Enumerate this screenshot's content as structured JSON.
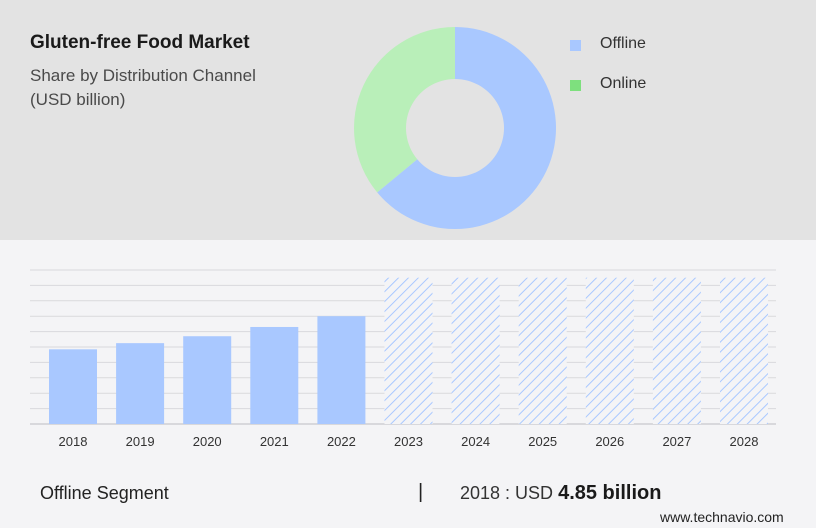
{
  "header": {
    "title": "Gluten-free Food Market",
    "subtitle": "Share by Distribution Channel",
    "unit": "(USD billion)"
  },
  "legend": [
    {
      "label": "Offline",
      "color": "#a9c8ff"
    },
    {
      "label": "Online",
      "color": "#7ee07e"
    }
  ],
  "chart_data": [
    {
      "type": "pie",
      "style": "donut",
      "slices": [
        {
          "label": "Offline",
          "value": 64,
          "color": "#a9c8ff"
        },
        {
          "label": "Online",
          "value": 36,
          "color": "#b9efb9"
        }
      ]
    },
    {
      "type": "bar",
      "categories": [
        "2018",
        "2019",
        "2020",
        "2021",
        "2022",
        "2023",
        "2024",
        "2025",
        "2026",
        "2027",
        "2028"
      ],
      "values": [
        4.85,
        5.25,
        5.7,
        6.3,
        7.0,
        null,
        null,
        null,
        null,
        null,
        null
      ],
      "forecast_categories": [
        "2023",
        "2024",
        "2025",
        "2026",
        "2027",
        "2028"
      ],
      "ylim": [
        0,
        10
      ],
      "grid": true,
      "bar_color": "#a9c8ff",
      "forecast_style": "hatched"
    }
  ],
  "footer": {
    "segment": "Offline Segment",
    "separator": "|",
    "year_label": "2018 : USD",
    "amount": "4.85 billion"
  },
  "brand": "www.technavio.com"
}
